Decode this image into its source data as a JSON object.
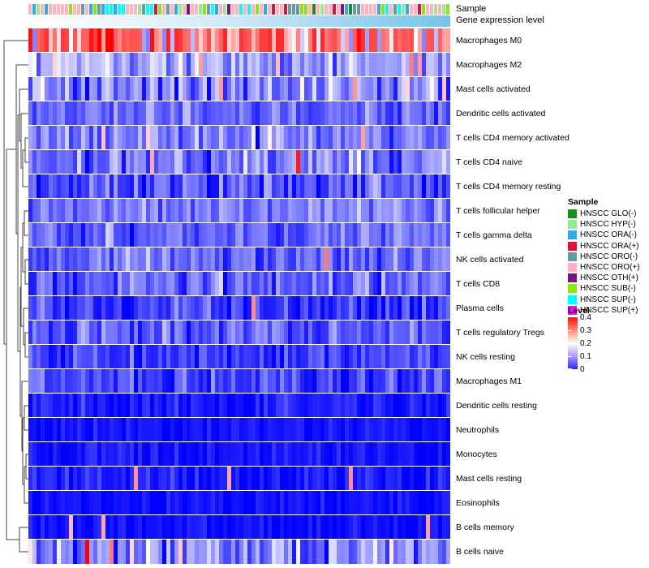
{
  "annotations": {
    "sample_label": "Sample",
    "gene_expression_label": "Gene expression level",
    "gene_expression_gradient": [
      "#ffffff",
      "#74c5e9"
    ]
  },
  "legend": {
    "sample": {
      "title": "Sample",
      "items": [
        {
          "label": "HNSCC GLO(-)",
          "color": "#1a8c22"
        },
        {
          "label": "HNSCC HYP(-)",
          "color": "#90ee90"
        },
        {
          "label": "HNSCC ORA(-)",
          "color": "#2ea9ea"
        },
        {
          "label": "HNSCC ORA(+)",
          "color": "#dc143c"
        },
        {
          "label": "HNSCC ORO(-)",
          "color": "#649ca8"
        },
        {
          "label": "HNSCC ORO(+)",
          "color": "#ffb3c1"
        },
        {
          "label": "HNSCC OTH(+)",
          "color": "#7e1185"
        },
        {
          "label": "HNSCC SUB(-)",
          "color": "#8fe31a"
        },
        {
          "label": "HNSCC SUP(-)",
          "color": "#00ffff"
        },
        {
          "label": "HNSCC SUP(+)",
          "color": "#ff00ff"
        }
      ]
    },
    "level": {
      "title": "Level",
      "ticks": [
        "0.4",
        "0.3",
        "0.2",
        "0.1",
        "0"
      ],
      "gradient_high": "#ff0000",
      "gradient_mid": "#ffffff",
      "gradient_low": "#3023f8"
    }
  },
  "chart_data": {
    "type": "heatmap",
    "n_columns": 104,
    "level_range": [
      0,
      0.4
    ],
    "colormap": {
      "low": "#0000ff",
      "mid": "#ffffff",
      "high": "#ff0000",
      "midpoint": 0.2
    },
    "rows": [
      {
        "label": "Macrophages M0",
        "mean": 0.31,
        "sd": 0.055,
        "low_rate": 0.1,
        "high_rate": 0
      },
      {
        "label": "Macrophages M2",
        "mean": 0.13,
        "sd": 0.035,
        "low_rate": 0,
        "high_rate": 0.05
      },
      {
        "label": "Mast cells activated",
        "mean": 0.105,
        "sd": 0.045,
        "low_rate": 0,
        "high_rate": 0.03
      },
      {
        "label": "Dendritic cells activated",
        "mean": 0.085,
        "sd": 0.03,
        "low_rate": 0,
        "high_rate": 0.01
      },
      {
        "label": "T cells CD4 memory activated",
        "mean": 0.1,
        "sd": 0.04,
        "low_rate": 0,
        "high_rate": 0.03
      },
      {
        "label": "T cells CD4 naive",
        "mean": 0.095,
        "sd": 0.04,
        "low_rate": 0,
        "high_rate": 0.02
      },
      {
        "label": "T cells CD4 memory resting",
        "mean": 0.065,
        "sd": 0.04,
        "low_rate": 0,
        "high_rate": 0
      },
      {
        "label": "T cells follicular helper",
        "mean": 0.095,
        "sd": 0.03,
        "low_rate": 0,
        "high_rate": 0
      },
      {
        "label": "T cells gamma delta",
        "mean": 0.08,
        "sd": 0.03,
        "low_rate": 0,
        "high_rate": 0
      },
      {
        "label": "NK cells activated",
        "mean": 0.08,
        "sd": 0.03,
        "low_rate": 0,
        "high_rate": 0.01
      },
      {
        "label": "T cells CD8",
        "mean": 0.07,
        "sd": 0.035,
        "low_rate": 0,
        "high_rate": 0
      },
      {
        "label": "Plasma cells",
        "mean": 0.05,
        "sd": 0.035,
        "low_rate": 0,
        "high_rate": 0.02
      },
      {
        "label": "T cells regulatory  Tregs",
        "mean": 0.07,
        "sd": 0.03,
        "low_rate": 0,
        "high_rate": 0
      },
      {
        "label": "NK cells resting",
        "mean": 0.045,
        "sd": 0.03,
        "low_rate": 0,
        "high_rate": 0
      },
      {
        "label": "Macrophages M1",
        "mean": 0.05,
        "sd": 0.03,
        "low_rate": 0,
        "high_rate": 0
      },
      {
        "label": "Dendritic cells resting",
        "mean": 0.02,
        "sd": 0.02,
        "low_rate": 0,
        "high_rate": 0.01
      },
      {
        "label": "Neutrophils",
        "mean": 0.015,
        "sd": 0.015,
        "low_rate": 0,
        "high_rate": 0
      },
      {
        "label": "Monocytes",
        "mean": 0.015,
        "sd": 0.015,
        "low_rate": 0,
        "high_rate": 0
      },
      {
        "label": "Mast cells resting",
        "mean": 0.02,
        "sd": 0.02,
        "low_rate": 0,
        "high_rate": 0.01
      },
      {
        "label": "Eosinophils",
        "mean": 0.012,
        "sd": 0.012,
        "low_rate": 0,
        "high_rate": 0
      },
      {
        "label": "B cells memory",
        "mean": 0.01,
        "sd": 0.012,
        "low_rate": 0,
        "high_rate": 0.01
      },
      {
        "label": "B cells naive",
        "mean": 0.1,
        "sd": 0.055,
        "low_rate": 0,
        "high_rate": 0.06
      }
    ],
    "outliers": [
      {
        "row": 6,
        "col": 67,
        "value": 0.38
      },
      {
        "row": 22,
        "col": 15,
        "value": 0.4
      },
      {
        "row": 2,
        "col": 97,
        "value": 0.28
      }
    ],
    "column_annotation_distribution": [
      {
        "category": "HNSCC ORO(+)",
        "color": "#ffb3c1",
        "weight": 0.34
      },
      {
        "category": "HNSCC SUP(-)",
        "color": "#00ffff",
        "weight": 0.17
      },
      {
        "category": "HNSCC ORO(-)",
        "color": "#649ca8",
        "weight": 0.13
      },
      {
        "category": "HNSCC ORA(-)",
        "color": "#2ea9ea",
        "weight": 0.12
      },
      {
        "category": "HNSCC HYP(-)",
        "color": "#90ee90",
        "weight": 0.06
      },
      {
        "category": "HNSCC GLO(-)",
        "color": "#1a8c22",
        "weight": 0.04
      },
      {
        "category": "HNSCC ORA(+)",
        "color": "#dc143c",
        "weight": 0.04
      },
      {
        "category": "HNSCC SUB(-)",
        "color": "#8fe31a",
        "weight": 0.03
      },
      {
        "category": "HNSCC SUP(+)",
        "color": "#ff00ff",
        "weight": 0.02
      },
      {
        "category": "HNSCC OTH(+)",
        "color": "#7e1185",
        "weight": 0.02
      }
    ]
  }
}
